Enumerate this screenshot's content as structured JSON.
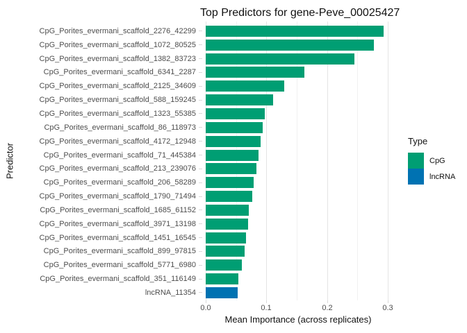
{
  "figure": {
    "title": "Top Predictors for gene-Peve_00025427"
  },
  "legend": {
    "title": "Type",
    "entries": [
      {
        "label": "CpG",
        "color": "#009E73"
      },
      {
        "label": "lncRNA",
        "color": "#0072B2"
      }
    ]
  },
  "chart_data": {
    "type": "bar",
    "orientation": "horizontal",
    "title": "Top Predictors for gene-Peve_00025427",
    "xlabel": "Mean Importance (across replicates)",
    "ylabel": "Predictor",
    "xlim": [
      0,
      0.3
    ],
    "xtick_values": [
      0,
      0.1,
      0.2,
      0.3
    ],
    "xtick_labels": [
      "0.0",
      "0.1",
      "0.2",
      "0.3"
    ],
    "minor_gridline_values": [
      0.05,
      0.15,
      0.25
    ],
    "grid": true,
    "legend_position": "right",
    "colors": {
      "CpG": "#009E73",
      "lncRNA": "#0072B2"
    },
    "bars": [
      {
        "label": "CpG_Porites_evermani_scaffold_2276_42299",
        "value": 0.293,
        "type": "CpG"
      },
      {
        "label": "CpG_Porites_evermani_scaffold_1072_80525",
        "value": 0.277,
        "type": "CpG"
      },
      {
        "label": "CpG_Porites_evermani_scaffold_1382_83723",
        "value": 0.245,
        "type": "CpG"
      },
      {
        "label": "CpG_Porites_evermani_scaffold_6341_2287",
        "value": 0.163,
        "type": "CpG"
      },
      {
        "label": "CpG_Porites_evermani_scaffold_2125_34609",
        "value": 0.129,
        "type": "CpG"
      },
      {
        "label": "CpG_Porites_evermani_scaffold_588_159245",
        "value": 0.111,
        "type": "CpG"
      },
      {
        "label": "CpG_Porites_evermani_scaffold_1323_55385",
        "value": 0.097,
        "type": "CpG"
      },
      {
        "label": "CpG_Porites_evermani_scaffold_86_118973",
        "value": 0.094,
        "type": "CpG"
      },
      {
        "label": "CpG_Porites_evermani_scaffold_4172_12948",
        "value": 0.09,
        "type": "CpG"
      },
      {
        "label": "CpG_Porites_evermani_scaffold_71_445384",
        "value": 0.087,
        "type": "CpG"
      },
      {
        "label": "CpG_Porites_evermani_scaffold_213_239076",
        "value": 0.084,
        "type": "CpG"
      },
      {
        "label": "CpG_Porites_evermani_scaffold_206_58289",
        "value": 0.079,
        "type": "CpG"
      },
      {
        "label": "CpG_Porites_evermani_scaffold_1790_71494",
        "value": 0.077,
        "type": "CpG"
      },
      {
        "label": "CpG_Porites_evermani_scaffold_1685_61152",
        "value": 0.071,
        "type": "CpG"
      },
      {
        "label": "CpG_Porites_evermani_scaffold_3971_13198",
        "value": 0.07,
        "type": "CpG"
      },
      {
        "label": "CpG_Porites_evermani_scaffold_1451_16545",
        "value": 0.066,
        "type": "CpG"
      },
      {
        "label": "CpG_Porites_evermani_scaffold_899_97815",
        "value": 0.064,
        "type": "CpG"
      },
      {
        "label": "CpG_Porites_evermani_scaffold_5771_6980",
        "value": 0.06,
        "type": "CpG"
      },
      {
        "label": "CpG_Porites_evermani_scaffold_351_116149",
        "value": 0.054,
        "type": "CpG"
      },
      {
        "label": "lncRNA_11354",
        "value": 0.053,
        "type": "lncRNA"
      }
    ]
  }
}
